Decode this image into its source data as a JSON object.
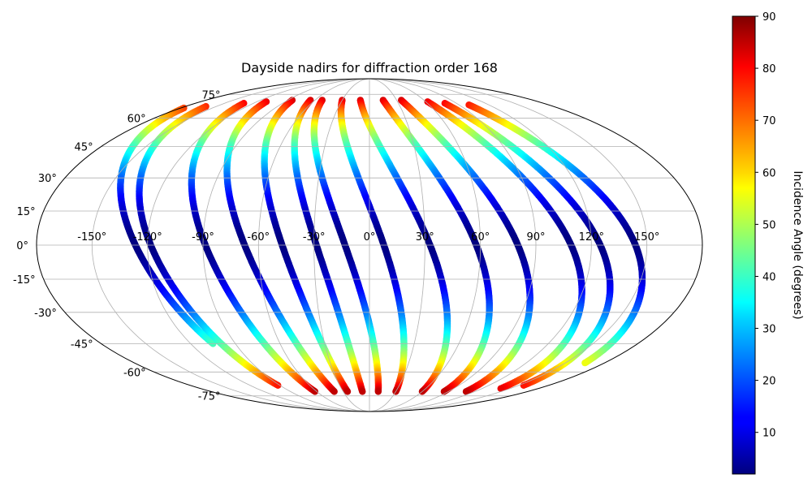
{
  "chart_data": {
    "type": "scatter",
    "projection": "mollweide",
    "title": "Dayside nadirs for diffraction order 168",
    "xlabel": "",
    "ylabel": "",
    "x_tick_labels": [
      "-150°",
      "-120°",
      "-90°",
      "-60°",
      "-30°",
      "0°",
      "30°",
      "60°",
      "90°",
      "120°",
      "150°"
    ],
    "y_tick_labels": [
      "-75°",
      "-60°",
      "-45°",
      "-30°",
      "-15°",
      "0°",
      "15°",
      "30°",
      "45°",
      "60°",
      "75°"
    ],
    "xlim": [
      -180,
      180
    ],
    "ylim": [
      -90,
      90
    ],
    "grid": true,
    "colormap": "jet",
    "colorbar": {
      "label": "Incidence Angle (degrees)",
      "range": [
        2,
        90
      ],
      "tick_labels": [
        "10",
        "20",
        "30",
        "40",
        "50",
        "60",
        "70",
        "80",
        "90"
      ]
    },
    "tracks": [
      {
        "lon_north": -177,
        "lon_south": -105,
        "lat_start": 66,
        "lat_end": -45
      },
      {
        "lon_north": -160,
        "lon_south": -92,
        "lat_start": 67,
        "lat_end": -68
      },
      {
        "lon_north": -130,
        "lon_south": -62,
        "lat_start": 69,
        "lat_end": -72
      },
      {
        "lon_north": -110,
        "lon_south": -40,
        "lat_start": 70,
        "lat_end": -72
      },
      {
        "lon_north": -85,
        "lon_south": -25,
        "lat_start": 71,
        "lat_end": -72
      },
      {
        "lon_north": -65,
        "lon_south": -8,
        "lat_start": 71,
        "lat_end": -72
      },
      {
        "lon_north": -52,
        "lon_south": 10,
        "lat_start": 71,
        "lat_end": -72
      },
      {
        "lon_north": -30,
        "lon_south": 30,
        "lat_start": 71,
        "lat_end": -72
      },
      {
        "lon_north": -10,
        "lon_south": 60,
        "lat_start": 71,
        "lat_end": -72
      },
      {
        "lon_north": 15,
        "lon_south": 85,
        "lat_start": 71,
        "lat_end": -72
      },
      {
        "lon_north": 35,
        "lon_south": 110,
        "lat_start": 71,
        "lat_end": -72
      },
      {
        "lon_north": 62,
        "lon_south": 140,
        "lat_start": 70,
        "lat_end": -70
      },
      {
        "lon_north": 78,
        "lon_south": 155,
        "lat_start": 69,
        "lat_end": -68
      },
      {
        "lon_north": 100,
        "lon_south": 165,
        "lat_start": 68,
        "lat_end": -55
      }
    ]
  }
}
